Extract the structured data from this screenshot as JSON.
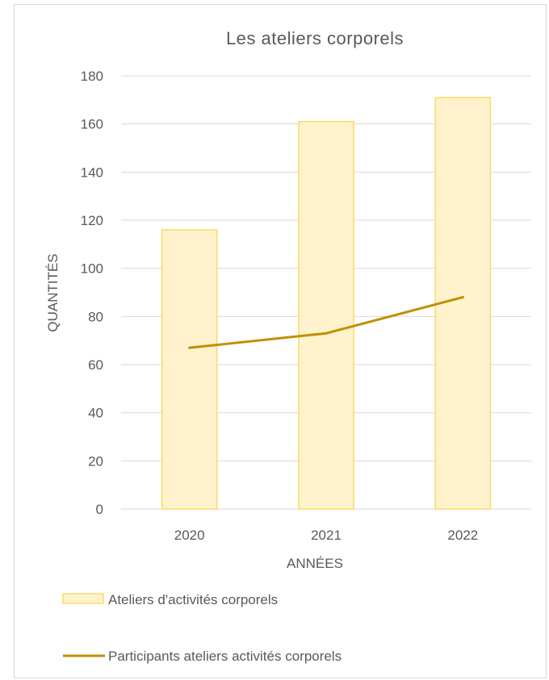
{
  "chart_data": {
    "type": "bar",
    "title": "Les ateliers corporels",
    "xlabel": "ANNÉES",
    "ylabel": "QUANTITÉS",
    "categories": [
      "2020",
      "2021",
      "2022"
    ],
    "ylim": [
      0,
      180
    ],
    "yticks": [
      0,
      20,
      40,
      60,
      80,
      100,
      120,
      140,
      160,
      180
    ],
    "grid": true,
    "legend_position": "bottom",
    "series": [
      {
        "name": "Ateliers d'activités corporels",
        "type": "bar",
        "values": [
          116,
          161,
          171
        ],
        "fill": "#fff2cc",
        "stroke": "#ffd966"
      },
      {
        "name": "Participants ateliers activités corporels",
        "type": "line",
        "values": [
          67,
          73,
          88
        ],
        "color": "#bf9000"
      }
    ]
  }
}
